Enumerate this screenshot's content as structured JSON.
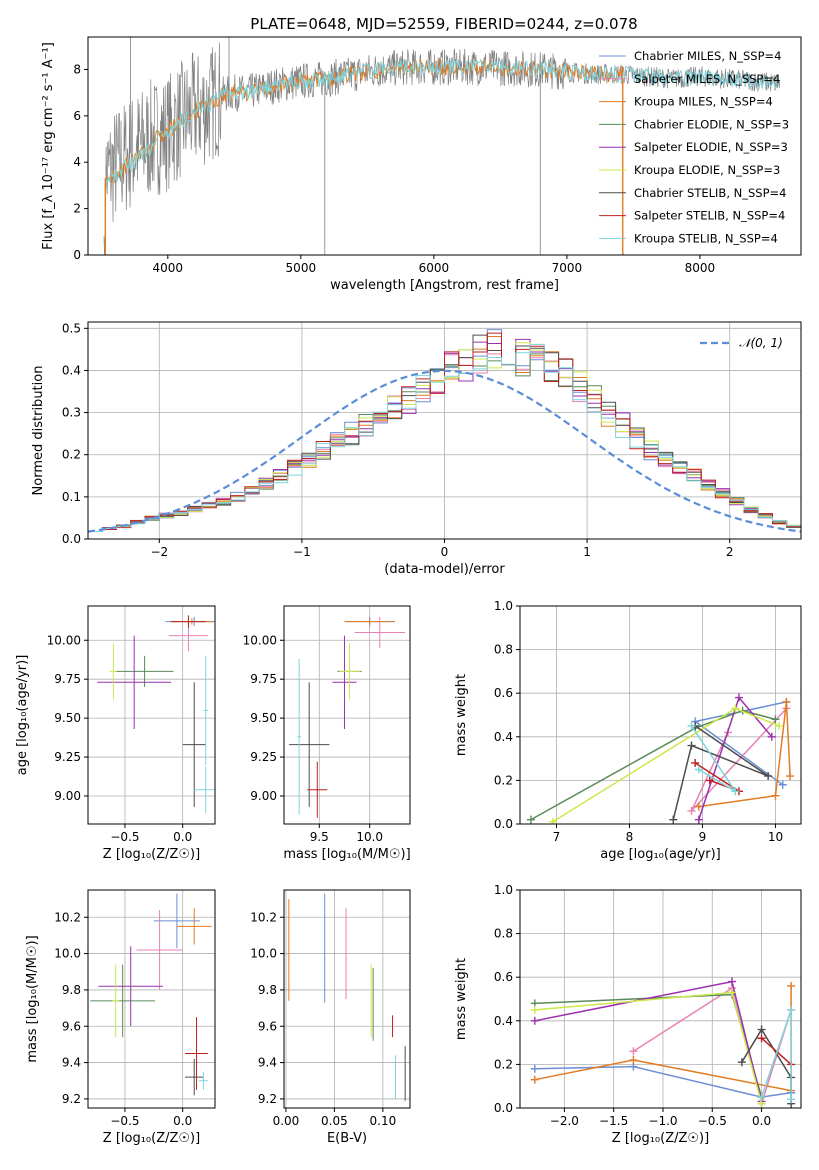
{
  "figure": {
    "title": "PLATE=0648, MJD=52559, FIBERID=0244, z=0.078",
    "colors": {
      "chabrier_miles": "#6b8fd6",
      "salpeter_miles": "#e882b3",
      "kroupa_miles": "#e27b23",
      "chabrier_elodie": "#5a8a5a",
      "salpeter_elodie": "#9b30b0",
      "kroupa_elodie": "#cde84a",
      "chabrier_stelib": "#4d4d4d",
      "salpeter_stelib": "#c02020",
      "kroupa_stelib": "#7fd3dc",
      "gauss": "#5b8ddb",
      "data": "#808080",
      "grid": "#b0b0b0"
    }
  },
  "chart_data": [
    {
      "id": "spectrum",
      "type": "line",
      "xlabel": "wavelength [Angstrom, rest frame]",
      "ylabel": "Flux [f_λ 10⁻¹⁷ erg cm⁻² s⁻¹ A⁻¹]",
      "xlim": [
        3400,
        8760
      ],
      "ylim": [
        0,
        9.4
      ],
      "xticks": [
        4000,
        5000,
        6000,
        7000,
        8000
      ],
      "yticks": [
        0,
        2,
        4,
        6,
        8
      ],
      "grid": false,
      "legend_position": "right",
      "legend": [
        {
          "name": "Chabrier MILES, N_SSP=4",
          "color_key": "chabrier_miles"
        },
        {
          "name": "Salpeter MILES, N_SSP=4",
          "color_key": "salpeter_miles"
        },
        {
          "name": "Kroupa MILES, N_SSP=4",
          "color_key": "kroupa_miles"
        },
        {
          "name": "Chabrier ELODIE, N_SSP=3",
          "color_key": "chabrier_elodie"
        },
        {
          "name": "Salpeter ELODIE, N_SSP=3",
          "color_key": "salpeter_elodie"
        },
        {
          "name": "Kroupa ELODIE, N_SSP=3",
          "color_key": "kroupa_elodie"
        },
        {
          "name": "Chabrier STELIB, N_SSP=4",
          "color_key": "chabrier_stelib"
        },
        {
          "name": "Salpeter STELIB, N_SSP=4",
          "color_key": "salpeter_stelib"
        },
        {
          "name": "Kroupa STELIB, N_SSP=4",
          "color_key": "kroupa_stelib"
        }
      ],
      "continuum": {
        "x": [
          3520,
          3600,
          3700,
          3800,
          3900,
          4000,
          4100,
          4200,
          4300,
          4400,
          4500,
          4600,
          4800,
          5000,
          5200,
          5400,
          5600,
          5800,
          6000,
          6200,
          6400,
          6600,
          6800,
          7000,
          7200,
          7400,
          7600,
          7800,
          8000,
          8200,
          8400,
          8600
        ],
        "y": [
          3.4,
          3.8,
          4.3,
          4.7,
          5.1,
          5.3,
          5.8,
          6.2,
          6.4,
          6.9,
          7.0,
          7.0,
          7.3,
          7.5,
          7.6,
          7.8,
          8.0,
          8.1,
          8.1,
          8.1,
          8.1,
          8.05,
          8.0,
          7.9,
          7.8,
          7.8,
          7.7,
          7.6,
          7.7,
          7.6,
          7.5,
          7.4
        ]
      }
    },
    {
      "id": "residuals",
      "type": "histogram",
      "xlabel": "(data-model)/error",
      "ylabel": "Normed distribution",
      "xlim": [
        -2.5,
        2.5
      ],
      "ylim": [
        0,
        0.515
      ],
      "xticks": [
        -2,
        -1,
        0,
        1,
        2
      ],
      "yticks": [
        0.0,
        0.1,
        0.2,
        0.3,
        0.4,
        0.5
      ],
      "grid": true,
      "legend_position": "top-right",
      "legend": [
        {
          "name": "𝒩(0, 1)",
          "color_key": "gauss"
        }
      ],
      "bin_width": 0.1,
      "bins": {
        "x_start": -2.5,
        "values": [
          0.02,
          0.025,
          0.03,
          0.04,
          0.05,
          0.055,
          0.06,
          0.07,
          0.08,
          0.09,
          0.1,
          0.115,
          0.13,
          0.15,
          0.17,
          0.19,
          0.21,
          0.23,
          0.25,
          0.27,
          0.29,
          0.31,
          0.33,
          0.35,
          0.37,
          0.4,
          0.42,
          0.44,
          0.45,
          0.44,
          0.43,
          0.42,
          0.41,
          0.39,
          0.36,
          0.33,
          0.3,
          0.27,
          0.24,
          0.21,
          0.19,
          0.17,
          0.15,
          0.13,
          0.11,
          0.09,
          0.07,
          0.055,
          0.04,
          0.03
        ]
      }
    },
    {
      "id": "age_vs_Z",
      "type": "errorbar",
      "xlabel": "Z [log₁₀(Z/Z☉)]",
      "ylabel": "age  [log₁₀(age/yr)]",
      "xlim": [
        -0.82,
        0.28
      ],
      "ylim": [
        8.82,
        10.22
      ],
      "xticks": [
        -0.5,
        0.0
      ],
      "yticks": [
        9.0,
        9.25,
        9.5,
        9.75,
        10.0
      ],
      "grid": true,
      "points": [
        {
          "c": "chabrier_miles",
          "x": 0.1,
          "xe": 0.25,
          "y": 10.12,
          "ye": 0.03
        },
        {
          "c": "salpeter_miles",
          "x": 0.05,
          "xe": 0.17,
          "y": 10.03,
          "ye": 0.1
        },
        {
          "c": "kroupa_miles",
          "x": 0.08,
          "xe": 0.18,
          "y": 10.12,
          "ye": 0.02
        },
        {
          "c": "chabrier_elodie",
          "x": -0.33,
          "xe": 0.25,
          "y": 9.8,
          "ye": 0.1
        },
        {
          "c": "salpeter_elodie",
          "x": -0.42,
          "xe": 0.32,
          "y": 9.73,
          "ye": 0.3
        },
        {
          "c": "kroupa_elodie",
          "x": -0.6,
          "xe": 0.03,
          "y": 9.8,
          "ye": 0.18
        },
        {
          "c": "chabrier_stelib",
          "x": 0.1,
          "xe": 0.1,
          "y": 9.33,
          "ye": 0.4
        },
        {
          "c": "salpeter_stelib",
          "x": 0.05,
          "xe": 0.15,
          "y": 10.12,
          "ye": 0.04
        },
        {
          "c": "kroupa_stelib",
          "x": 0.2,
          "xe": 0.1,
          "y": 9.04,
          "ye": 0.15
        },
        {
          "c": "kroupa_stelib",
          "x": 0.2,
          "xe": 0.02,
          "y": 9.55,
          "ye": 0.35
        }
      ]
    },
    {
      "id": "age_vs_mass",
      "type": "errorbar",
      "xlabel": "mass [log₁₀(M/M☉)]",
      "ylabel": "",
      "xlim": [
        9.15,
        10.4
      ],
      "ylim": [
        8.82,
        10.22
      ],
      "xticks": [
        9.5,
        10.0
      ],
      "yticks": [
        9.0,
        9.25,
        9.5,
        9.75,
        10.0
      ],
      "grid": true,
      "points": [
        {
          "c": "chabrier_miles",
          "x": 10.0,
          "xe": 0.25,
          "y": 10.12,
          "ye": 0.03
        },
        {
          "c": "salpeter_miles",
          "x": 10.1,
          "xe": 0.25,
          "y": 10.05,
          "ye": 0.1
        },
        {
          "c": "kroupa_miles",
          "x": 10.0,
          "xe": 0.25,
          "y": 10.12,
          "ye": 0.02
        },
        {
          "c": "chabrier_elodie",
          "x": 9.8,
          "xe": 0.12,
          "y": 9.8,
          "ye": 0.1
        },
        {
          "c": "salpeter_elodie",
          "x": 9.75,
          "xe": 0.12,
          "y": 9.73,
          "ye": 0.3
        },
        {
          "c": "kroupa_elodie",
          "x": 9.8,
          "xe": 0.1,
          "y": 9.8,
          "ye": 0.18
        },
        {
          "c": "chabrier_stelib",
          "x": 9.4,
          "xe": 0.2,
          "y": 9.33,
          "ye": 0.4
        },
        {
          "c": "salpeter_stelib",
          "x": 9.48,
          "xe": 0.1,
          "y": 9.04,
          "ye": 0.18
        },
        {
          "c": "kroupa_stelib",
          "x": 9.3,
          "xe": 0.02,
          "y": 9.38,
          "ye": 0.5
        }
      ]
    },
    {
      "id": "weight_vs_age",
      "type": "line",
      "xlabel": "age  [log₁₀(age/yr)]",
      "ylabel": "mass weight",
      "xlim": [
        6.5,
        10.35
      ],
      "ylim": [
        0,
        1.0
      ],
      "xticks": [
        7,
        8,
        9,
        10
      ],
      "yticks": [
        0.0,
        0.2,
        0.4,
        0.6,
        0.8,
        1.0
      ],
      "grid": true,
      "series": [
        {
          "c": "chabrier_miles",
          "x": [
            10.1,
            8.9,
            10.15
          ],
          "y": [
            0.18,
            0.47,
            0.56
          ]
        },
        {
          "c": "salpeter_miles",
          "x": [
            9.35,
            8.85,
            10.15
          ],
          "y": [
            0.42,
            0.06,
            0.53
          ]
        },
        {
          "c": "kroupa_miles",
          "x": [
            8.95,
            10.0,
            10.15,
            10.2
          ],
          "y": [
            0.08,
            0.13,
            0.56,
            0.22
          ]
        },
        {
          "c": "chabrier_elodie",
          "x": [
            6.65,
            8.9,
            9.55,
            10.0
          ],
          "y": [
            0.02,
            0.44,
            0.52,
            0.48
          ]
        },
        {
          "c": "salpeter_elodie",
          "x": [
            8.95,
            9.5,
            9.95
          ],
          "y": [
            0.02,
            0.58,
            0.4
          ]
        },
        {
          "c": "kroupa_elodie",
          "x": [
            6.95,
            9.45,
            10.05
          ],
          "y": [
            0.01,
            0.53,
            0.45
          ]
        },
        {
          "c": "chabrier_stelib",
          "x": [
            8.6,
            8.85,
            9.9,
            8.9
          ],
          "y": [
            0.02,
            0.36,
            0.22,
            0.45
          ]
        },
        {
          "c": "salpeter_stelib",
          "x": [
            8.9,
            9.5,
            9.1
          ],
          "y": [
            0.28,
            0.15,
            0.2
          ]
        },
        {
          "c": "kroupa_stelib",
          "x": [
            8.85,
            9.45,
            8.95
          ],
          "y": [
            0.45,
            0.15,
            0.25
          ]
        }
      ]
    },
    {
      "id": "mass_vs_Z",
      "type": "errorbar",
      "xlabel": "Z [log₁₀(Z/Z☉)]",
      "ylabel": "mass [log₁₀(M/M☉)]",
      "xlim": [
        -0.82,
        0.28
      ],
      "ylim": [
        9.15,
        10.35
      ],
      "xticks": [
        -0.5,
        0.0
      ],
      "yticks": [
        9.2,
        9.4,
        9.6,
        9.8,
        10.0,
        10.2
      ],
      "grid": true,
      "points": [
        {
          "c": "chabrier_miles",
          "x": -0.05,
          "xe": 0.2,
          "y": 10.18,
          "ye": 0.15
        },
        {
          "c": "salpeter_miles",
          "x": -0.2,
          "xe": 0.2,
          "y": 10.02,
          "ye": 0.22
        },
        {
          "c": "kroupa_miles",
          "x": 0.1,
          "xe": 0.15,
          "y": 10.15,
          "ye": 0.1
        },
        {
          "c": "chabrier_elodie",
          "x": -0.52,
          "xe": 0.28,
          "y": 9.74,
          "ye": 0.2
        },
        {
          "c": "salpeter_elodie",
          "x": -0.45,
          "xe": 0.28,
          "y": 9.82,
          "ye": 0.22
        },
        {
          "c": "kroupa_elodie",
          "x": -0.58,
          "xe": 0.03,
          "y": 9.74,
          "ye": 0.2
        },
        {
          "c": "chabrier_stelib",
          "x": 0.1,
          "xe": 0.08,
          "y": 9.32,
          "ye": 0.1
        },
        {
          "c": "salpeter_stelib",
          "x": 0.12,
          "xe": 0.1,
          "y": 9.45,
          "ye": 0.2
        },
        {
          "c": "kroupa_stelib",
          "x": 0.18,
          "xe": 0.04,
          "y": 9.3,
          "ye": 0.05
        }
      ]
    },
    {
      "id": "mass_vs_ebv",
      "type": "errorbar",
      "xlabel": "E(B-V)",
      "ylabel": "",
      "xlim": [
        -0.002,
        0.128
      ],
      "ylim": [
        9.15,
        10.35
      ],
      "xticks": [
        0.0,
        0.05,
        0.1
      ],
      "yticks": [
        9.2,
        9.4,
        9.6,
        9.8,
        10.0,
        10.2
      ],
      "grid": true,
      "points": [
        {
          "c": "chabrier_miles",
          "x": 0.04,
          "xe": 0,
          "y": 10.03,
          "ye": 0.3
        },
        {
          "c": "salpeter_miles",
          "x": 0.062,
          "xe": 0,
          "y": 10.0,
          "ye": 0.25
        },
        {
          "c": "kroupa_miles",
          "x": 0.003,
          "xe": 0,
          "y": 10.02,
          "ye": 0.28
        },
        {
          "c": "kroupa_elodie",
          "x": 0.088,
          "xe": 0,
          "y": 9.74,
          "ye": 0.2
        },
        {
          "c": "chabrier_elodie",
          "x": 0.09,
          "xe": 0,
          "y": 9.72,
          "ye": 0.2
        },
        {
          "c": "salpeter_stelib",
          "x": 0.11,
          "xe": 0,
          "y": 9.6,
          "ye": 0.06
        },
        {
          "c": "kroupa_stelib",
          "x": 0.113,
          "xe": 0,
          "y": 9.32,
          "ye": 0.12
        },
        {
          "c": "chabrier_stelib",
          "x": 0.123,
          "xe": 0,
          "y": 9.34,
          "ye": 0.15
        }
      ]
    },
    {
      "id": "weight_vs_Z",
      "type": "line",
      "xlabel": "Z [log₁₀(Z/Z☉)]",
      "ylabel": "mass weight",
      "xlim": [
        -2.45,
        0.4
      ],
      "ylim": [
        0,
        1.0
      ],
      "xticks": [
        -2.0,
        -1.5,
        -1.0,
        -0.5,
        0.0
      ],
      "yticks": [
        0.0,
        0.2,
        0.4,
        0.6,
        0.8,
        1.0
      ],
      "grid": true,
      "series": [
        {
          "c": "chabrier_miles",
          "x": [
            -2.3,
            -1.3,
            0.0,
            0.3
          ],
          "y": [
            0.18,
            0.19,
            0.05,
            0.07
          ]
        },
        {
          "c": "salpeter_miles",
          "x": [
            -1.3,
            -0.3,
            0.0,
            0.3
          ],
          "y": [
            0.26,
            0.55,
            0.02,
            0.45
          ]
        },
        {
          "c": "kroupa_miles",
          "x": [
            -2.3,
            -1.3,
            0.3,
            0.3
          ],
          "y": [
            0.13,
            0.22,
            0.08,
            0.56
          ]
        },
        {
          "c": "chabrier_elodie",
          "x": [
            -2.3,
            -0.3,
            0.0
          ],
          "y": [
            0.48,
            0.52,
            0.05
          ]
        },
        {
          "c": "salpeter_elodie",
          "x": [
            -2.3,
            -0.3,
            0.0
          ],
          "y": [
            0.4,
            0.58,
            0.03
          ]
        },
        {
          "c": "kroupa_elodie",
          "x": [
            -2.3,
            -0.3,
            0.0
          ],
          "y": [
            0.45,
            0.53,
            0.02
          ]
        },
        {
          "c": "chabrier_stelib",
          "x": [
            -0.2,
            0.0,
            0.3,
            0.3
          ],
          "y": [
            0.21,
            0.36,
            0.14,
            0.02
          ]
        },
        {
          "c": "salpeter_stelib",
          "x": [
            0.0,
            0.3
          ],
          "y": [
            0.32,
            0.2
          ]
        },
        {
          "c": "kroupa_stelib",
          "x": [
            0.0,
            0.3,
            0.3
          ],
          "y": [
            0.05,
            0.45,
            0.04
          ]
        }
      ]
    }
  ]
}
